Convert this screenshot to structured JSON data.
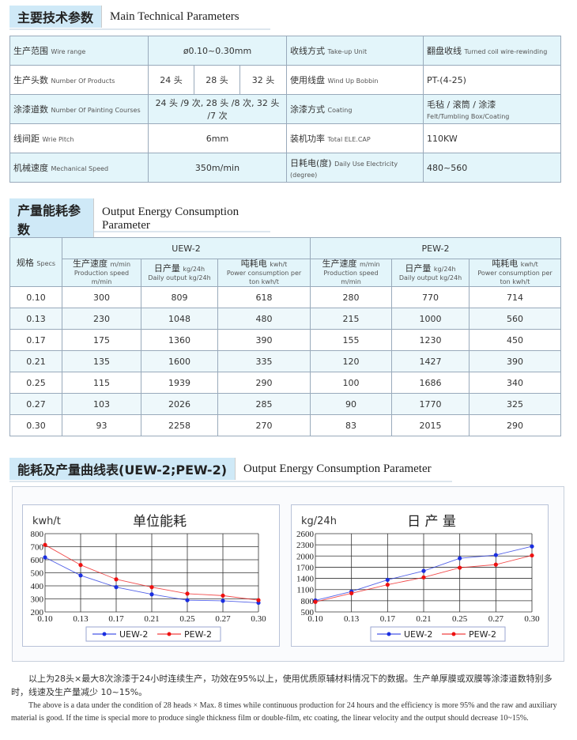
{
  "section1": {
    "title_cn": "主要技术参数",
    "title_en": "Main Technical Parameters",
    "rows": [
      {
        "l_cn": "生产范围",
        "l_en": "Wire range",
        "value": "ø0.10~0.30mm",
        "r_cn": "收线方式",
        "r_en": "Take-up Unit",
        "r_val_cn": "翻盘收线",
        "r_val_en": "Turned coil wire-rewinding"
      },
      {
        "l_cn": "生产头数",
        "l_en": "Number Of Products",
        "values": [
          "24 头",
          "28 头",
          "32 头"
        ],
        "r_cn": "使用线盘",
        "r_en": "Wind Up Bobbin",
        "r_val_cn": "PT-(4-25)",
        "r_val_en": ""
      },
      {
        "l_cn": "涂漆道数",
        "l_en": "Number Of Painting Courses",
        "value": "24 头 /9 次, 28 头 /8 次, 32 头 /7 次",
        "r_cn": "涂漆方式",
        "r_en": "Coating",
        "r_val_cn": "毛毡 / 滚筒 / 涂漆",
        "r_val_en": "Felt/Tumbling Box/Coating"
      },
      {
        "l_cn": "线间距",
        "l_en": "Wrie Pitch",
        "value": "6mm",
        "r_cn": "装机功率",
        "r_en": "Total ELE.CAP",
        "r_val_cn": "110KW",
        "r_val_en": ""
      },
      {
        "l_cn": "机械速度",
        "l_en": "Mechanical Speed",
        "value": "350m/min",
        "r_cn": "日耗电(度)",
        "r_en": "Daily Use Electricity (degree)",
        "r_val_cn": "480~560",
        "r_val_en": ""
      }
    ]
  },
  "section2": {
    "title_cn": "产量能耗参数",
    "title_en": "Output Energy Consumption Parameter",
    "specs_cn": "规格",
    "specs_en": "Specs",
    "group1": "UEW-2",
    "group2": "PEW-2",
    "cols": [
      {
        "cn": "生产速度",
        "unit": "m/min",
        "en": "Production speed m/min"
      },
      {
        "cn": "日产量",
        "unit": "kg/24h",
        "en": "Daily output kg/24h"
      },
      {
        "cn": "吨耗电",
        "unit": "kwh/t",
        "en": "Power consumption per ton kwh/t"
      }
    ],
    "rows": [
      [
        "0.10",
        "300",
        "809",
        "618",
        "280",
        "770",
        "714"
      ],
      [
        "0.13",
        "230",
        "1048",
        "480",
        "215",
        "1000",
        "560"
      ],
      [
        "0.17",
        "175",
        "1360",
        "390",
        "155",
        "1230",
        "450"
      ],
      [
        "0.21",
        "135",
        "1600",
        "335",
        "120",
        "1427",
        "390"
      ],
      [
        "0.25",
        "115",
        "1939",
        "290",
        "100",
        "1686",
        "340"
      ],
      [
        "0.27",
        "103",
        "2026",
        "285",
        "90",
        "1770",
        "325"
      ],
      [
        "0.30",
        "93",
        "2258",
        "270",
        "83",
        "2015",
        "290"
      ]
    ]
  },
  "section3": {
    "title_cn": "能耗及产量曲线表(UEW-2;PEW-2)",
    "title_en": "Output Energy Consumption Parameter"
  },
  "chart_data": [
    {
      "type": "line",
      "title": "单位能耗",
      "ylabel": "kwh/t",
      "categories": [
        "0.10",
        "0.13",
        "0.17",
        "0.21",
        "0.25",
        "0.27",
        "0.30"
      ],
      "ylim": [
        200,
        800
      ],
      "yticks": [
        "200",
        "300",
        "400",
        "500",
        "600",
        "700",
        "800"
      ],
      "grid": true,
      "legend": "bottom",
      "series": [
        {
          "name": "UEW-2",
          "color": "#1a2ee0",
          "values": [
            618,
            480,
            390,
            335,
            290,
            285,
            270
          ]
        },
        {
          "name": "PEW-2",
          "color": "#ee1111",
          "values": [
            714,
            560,
            450,
            390,
            340,
            325,
            290
          ]
        }
      ]
    },
    {
      "type": "line",
      "title": "日 产 量",
      "ylabel": "kg/24h",
      "categories": [
        "0.10",
        "0.13",
        "0.17",
        "0.21",
        "0.25",
        "0.27",
        "0.30"
      ],
      "ylim": [
        500,
        2600
      ],
      "yticks": [
        "500",
        "800",
        "1100",
        "1400",
        "1700",
        "2000",
        "2300",
        "2600"
      ],
      "grid": true,
      "legend": "bottom",
      "series": [
        {
          "name": "UEW-2",
          "color": "#1a2ee0",
          "values": [
            809,
            1048,
            1360,
            1600,
            1939,
            2026,
            2258
          ]
        },
        {
          "name": "PEW-2",
          "color": "#ee1111",
          "values": [
            770,
            1000,
            1230,
            1427,
            1686,
            1770,
            2015
          ]
        }
      ]
    }
  ],
  "note": {
    "cn": "以上为28头×最大8次涂漆于24小时连续生产，功效在95%以上，使用优质原辅材料情况下的数据。生产单厚膜或双膜等涂漆道数特别多时，线速及生产量减少 10~15%。",
    "en": "The above is a data under the condition of 28 heads × Max. 8 times while continuous production for 24 hours and the efficiency is more 95% and the raw and auxiliary material is good. If the time is special more to produce single thickness film or double-film, etc coating, the linear velocity and the output should decrease 10~15%."
  }
}
